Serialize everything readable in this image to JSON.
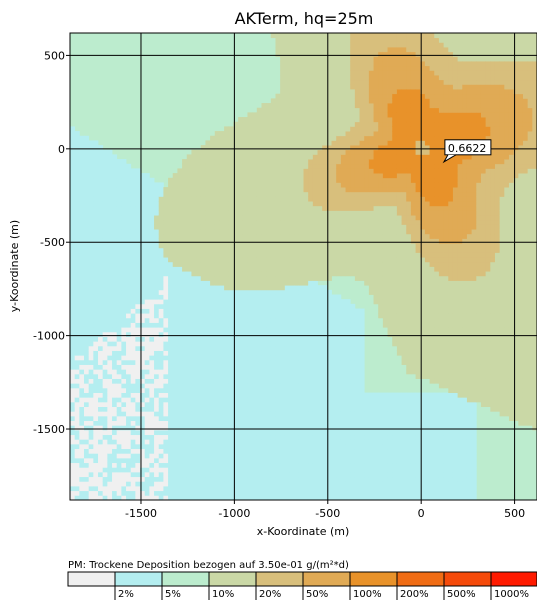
{
  "chart_data": {
    "type": "heatmap",
    "title": "AKTerm, hq=25m",
    "xlabel": "x-Koordinate (m)",
    "ylabel": "y-Koordinate (m)",
    "xlim": [
      -1880,
      620
    ],
    "ylim": [
      -1880,
      620
    ],
    "xticks": [
      -1500,
      -1000,
      -500,
      0,
      500
    ],
    "yticks": [
      500,
      0,
      -500,
      -1000,
      -1500
    ],
    "grid": true,
    "annotation": {
      "text": "0.6622",
      "x": 170,
      "y": 0
    },
    "legend": {
      "title": "PM: Trockene Deposition bezogen auf 3.50e-01 g/(m²*d)",
      "placement": "bottom",
      "classes": [
        {
          "label": "",
          "color": "#f0f0f0"
        },
        {
          "label": "2%",
          "color": "#b4eef0"
        },
        {
          "label": "5%",
          "color": "#bcecce"
        },
        {
          "label": "10%",
          "color": "#cad8a6"
        },
        {
          "label": "20%",
          "color": "#d8bf7c"
        },
        {
          "label": "50%",
          "color": "#e0aa55"
        },
        {
          "label": "100%",
          "color": "#e8922a"
        },
        {
          "label": "200%",
          "color": "#f06c14"
        },
        {
          "label": "500%",
          "color": "#f54a0a"
        },
        {
          "label": "1000%",
          "color": "#ff1a00"
        }
      ]
    }
  }
}
